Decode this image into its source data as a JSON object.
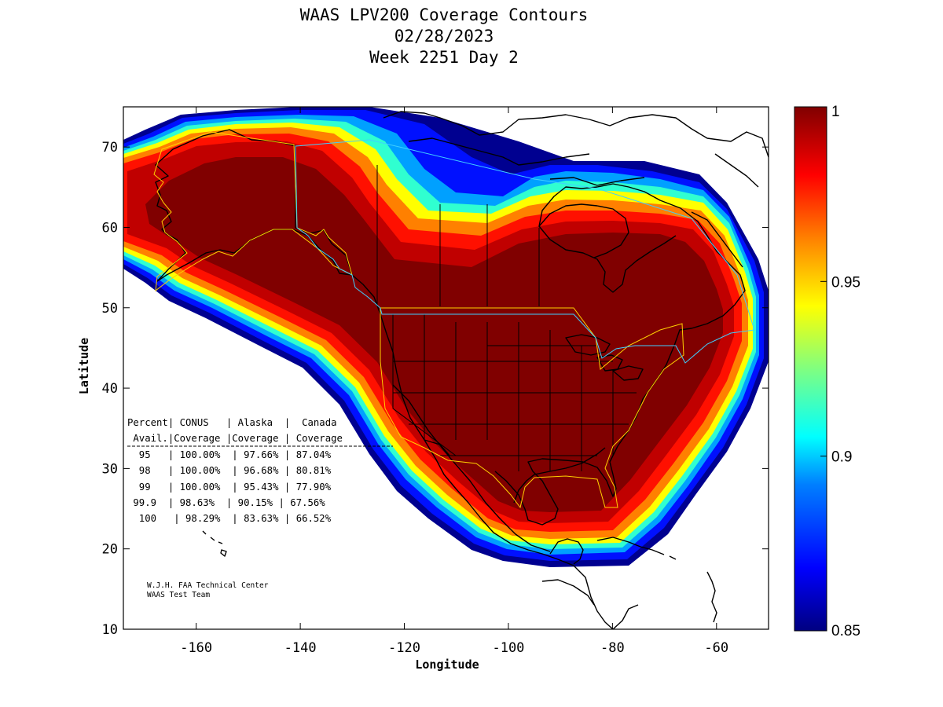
{
  "title": {
    "line1": "WAAS LPV200 Coverage Contours",
    "line2": "02/28/2023",
    "line3": "Week 2251 Day 2"
  },
  "axes": {
    "xlabel": "Longitude",
    "ylabel": "Latitude",
    "x_ticks": [
      "-160",
      "-140",
      "-120",
      "-100",
      "-80",
      "-60"
    ],
    "y_ticks": [
      "10",
      "20",
      "30",
      "40",
      "50",
      "60",
      "70"
    ]
  },
  "colorbar": {
    "ticks": [
      "1",
      "0.95",
      "0.9",
      "0.85"
    ],
    "colors": [
      "#000080",
      "#0000ff",
      "#0080ff",
      "#00ffff",
      "#80ff80",
      "#ffff00",
      "#ff8000",
      "#ff0000",
      "#800000"
    ]
  },
  "coverage_table": {
    "header1": "Percent| CONUS   | Alaska  |  Canada",
    "header2": " Avail.|Coverage |Coverage | Coverage",
    "rows": [
      "  95   | 100.00%  | 97.66% | 87.04%",
      "  98   | 100.00%  | 96.68% | 80.81%",
      "  99   | 100.00%  | 95.43% | 77.90%",
      " 99.9  | 98.63%  | 90.15% | 67.56%",
      "  100   | 98.29%  | 83.63% | 66.52%"
    ]
  },
  "credit": {
    "line1": "W.J.H. FAA Technical Center",
    "line2": "WAAS Test Team"
  },
  "chart_data": {
    "type": "heatmap",
    "title": "WAAS LPV200 Coverage Contours 02/28/2023 Week 2251 Day 2",
    "xlabel": "Longitude",
    "ylabel": "Latitude",
    "xlim": [
      -174,
      -50
    ],
    "ylim": [
      10,
      75
    ],
    "x_ticks": [
      -160,
      -140,
      -120,
      -100,
      -80,
      -60
    ],
    "y_ticks": [
      10,
      20,
      30,
      40,
      50,
      60,
      70
    ],
    "colorbar_range": [
      0.85,
      1
    ],
    "colorbar_ticks": [
      0.85,
      0.9,
      0.95,
      1
    ],
    "colormap": "jet",
    "table": {
      "columns": [
        "Percent Avail.",
        "CONUS Coverage",
        "Alaska Coverage",
        "Canada Coverage"
      ],
      "rows": [
        [
          "95",
          "100.00%",
          "97.66%",
          "87.04%"
        ],
        [
          "98",
          "100.00%",
          "96.68%",
          "80.81%"
        ],
        [
          "99",
          "100.00%",
          "95.43%",
          "77.90%"
        ],
        [
          "99.9",
          "98.63%",
          "90.15%",
          "67.56%"
        ],
        [
          "100",
          "98.29%",
          "83.63%",
          "66.52%"
        ]
      ]
    }
  }
}
